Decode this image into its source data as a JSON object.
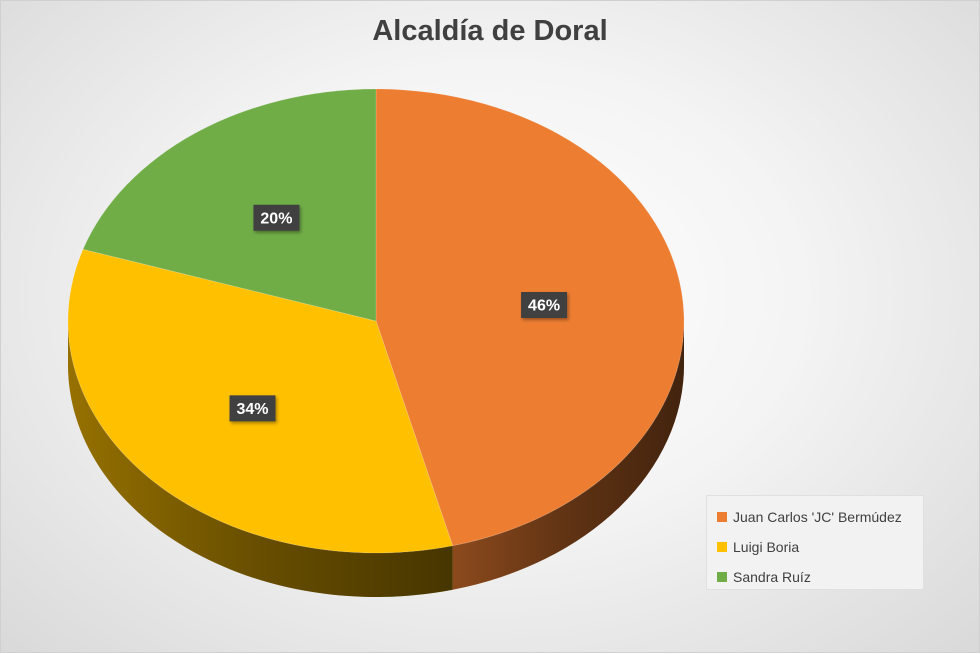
{
  "chart_data": {
    "type": "pie",
    "title": "Alcaldía de Doral",
    "categories": [
      "Juan Carlos 'JC' Bermúdez",
      "Luigi Boria",
      "Sandra Ruíz"
    ],
    "values": [
      46,
      34,
      20
    ],
    "data_labels": [
      "46%",
      "34%",
      "20%"
    ],
    "colors": [
      "#ED7D31",
      "#FFC000",
      "#70AD47"
    ],
    "legend_position": "bottom-right",
    "style": "3d"
  }
}
